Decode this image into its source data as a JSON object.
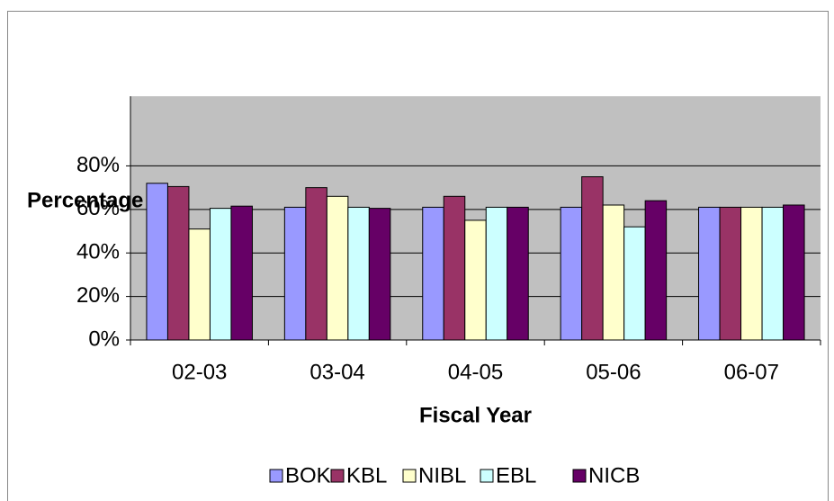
{
  "chart_data": {
    "type": "bar",
    "x_label": "Fiscal Year",
    "y_label": "Percentage",
    "categories": [
      "02-03",
      "03-04",
      "04-05",
      "05-06",
      "06-07"
    ],
    "series": [
      {
        "name": "BOK",
        "color": "#9999ff",
        "values": [
          72,
          61,
          61,
          61,
          61
        ]
      },
      {
        "name": "KBL",
        "color": "#993366",
        "values": [
          70.5,
          70,
          66,
          75,
          61
        ]
      },
      {
        "name": "NIBL",
        "color": "#ffffcc",
        "values": [
          51,
          66,
          55,
          62,
          61
        ]
      },
      {
        "name": "EBL",
        "color": "#ccffff",
        "values": [
          60.5,
          61,
          61,
          52,
          61
        ]
      },
      {
        "name": "NICB",
        "color": "#660066",
        "values": [
          61.5,
          60.5,
          61,
          64,
          62
        ]
      }
    ],
    "ylim": [
      0,
      112
    ],
    "yticks": [
      {
        "value": 0,
        "label": "0%"
      },
      {
        "value": 20,
        "label": "20%"
      },
      {
        "value": 40,
        "label": "40%"
      },
      {
        "value": 60,
        "label": "60%"
      },
      {
        "value": 80,
        "label": "80%"
      }
    ],
    "grid": true,
    "plot_background": "#c0c0c0",
    "legend": "bottom"
  }
}
